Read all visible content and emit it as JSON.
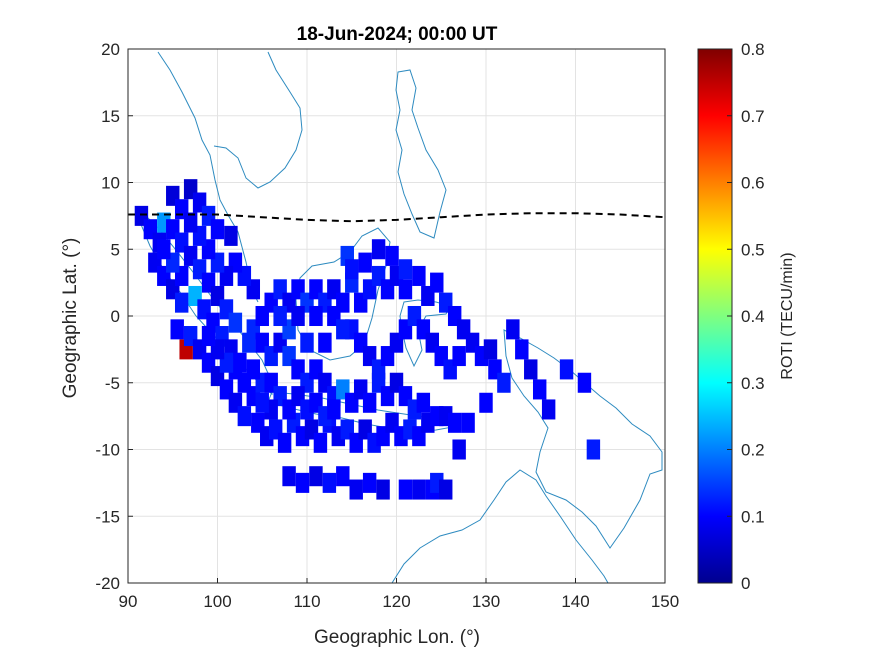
{
  "chart_data": {
    "type": "heatmap",
    "title": "18-Jun-2024; 00:00 UT",
    "xlabel": "Geographic Lon. (°)",
    "ylabel": "Geographic Lat. (°)",
    "xlim": [
      90,
      150
    ],
    "ylim": [
      -20,
      20
    ],
    "xticks": [
      90,
      100,
      110,
      120,
      130,
      140,
      150
    ],
    "yticks": [
      20,
      15,
      10,
      5,
      0,
      -5,
      -10,
      -15,
      -20
    ],
    "grid": true,
    "colorbar": {
      "label": "ROTI (TECU/min)",
      "range": [
        0,
        0.8
      ],
      "ticks": [
        0,
        0.1,
        0.2,
        0.3,
        0.4,
        0.5,
        0.6,
        0.7,
        0.8
      ],
      "colormap": "jet"
    },
    "magnetic_equator": {
      "style": "dashed",
      "color": "#000000",
      "lon": [
        90,
        95,
        100,
        105,
        110,
        115,
        120,
        125,
        130,
        135,
        140,
        145,
        150
      ],
      "lat": [
        7.6,
        7.6,
        7.6,
        7.4,
        7.2,
        7.1,
        7.2,
        7.4,
        7.6,
        7.7,
        7.7,
        7.6,
        7.4
      ]
    },
    "cell_size_deg": 1.5,
    "cells": [
      [
        91.5,
        7.5,
        0.08
      ],
      [
        92.5,
        6.5,
        0.1
      ],
      [
        93.5,
        5.5,
        0.09
      ],
      [
        95,
        9,
        0.07
      ],
      [
        96,
        8,
        0.1
      ],
      [
        97,
        9.5,
        0.06
      ],
      [
        98,
        8.5,
        0.09
      ],
      [
        99,
        7.5,
        0.12
      ],
      [
        100,
        6.5,
        0.1
      ],
      [
        101.5,
        6,
        0.08
      ],
      [
        94,
        7,
        0.22
      ],
      [
        95,
        6.5,
        0.1
      ],
      [
        96,
        5.5,
        0.11
      ],
      [
        97,
        4.5,
        0.09
      ],
      [
        98,
        3.5,
        0.12
      ],
      [
        99,
        2.5,
        0.1
      ],
      [
        100,
        1.5,
        0.08
      ],
      [
        101,
        0.5,
        0.12
      ],
      [
        102,
        -0.5,
        0.14
      ],
      [
        93,
        4,
        0.09
      ],
      [
        94,
        3,
        0.1
      ],
      [
        95,
        2,
        0.08
      ],
      [
        96,
        1,
        0.12
      ],
      [
        97.5,
        1.5,
        0.24
      ],
      [
        98.5,
        0.5,
        0.11
      ],
      [
        99.5,
        -0.5,
        0.1
      ],
      [
        100.5,
        -1.5,
        0.12
      ],
      [
        101.5,
        -2.5,
        0.09
      ],
      [
        102.5,
        -3.5,
        0.1
      ],
      [
        103.5,
        -2,
        0.13
      ],
      [
        96.5,
        -2.5,
        0.75
      ],
      [
        95.5,
        -1,
        0.1
      ],
      [
        97,
        -1.5,
        0.12
      ],
      [
        98,
        -2.5,
        0.09
      ],
      [
        99,
        -3.5,
        0.1
      ],
      [
        100,
        -4.5,
        0.08
      ],
      [
        101,
        -5.5,
        0.1
      ],
      [
        102,
        -6.5,
        0.09
      ],
      [
        103,
        -7.5,
        0.11
      ],
      [
        104,
        -6,
        0.1
      ],
      [
        105,
        -5,
        0.12
      ],
      [
        104.5,
        -8,
        0.1
      ],
      [
        105.5,
        -9,
        0.09
      ],
      [
        106.5,
        -8.5,
        0.11
      ],
      [
        107.5,
        -9.5,
        0.1
      ],
      [
        108.5,
        -8,
        0.12
      ],
      [
        109.5,
        -9,
        0.1
      ],
      [
        110.5,
        -8.5,
        0.08
      ],
      [
        111.5,
        -9.5,
        0.1
      ],
      [
        112.5,
        -8,
        0.11
      ],
      [
        113.5,
        -9,
        0.09
      ],
      [
        114.5,
        -8.5,
        0.12
      ],
      [
        115.5,
        -9.5,
        0.1
      ],
      [
        116.5,
        -8.5,
        0.08
      ],
      [
        117.5,
        -9.5,
        0.11
      ],
      [
        118.5,
        -9,
        0.1
      ],
      [
        119.5,
        -8,
        0.09
      ],
      [
        120.5,
        -9,
        0.1
      ],
      [
        121.5,
        -8.5,
        0.12
      ],
      [
        122.5,
        -9,
        0.1
      ],
      [
        123.5,
        -8,
        0.09
      ],
      [
        124.5,
        -7.5,
        0.1
      ],
      [
        125.5,
        -7.5,
        0.09
      ],
      [
        126.5,
        -8,
        0.1
      ],
      [
        104,
        -1,
        0.13
      ],
      [
        105,
        -2,
        0.1
      ],
      [
        106,
        -3,
        0.12
      ],
      [
        107,
        -2,
        0.09
      ],
      [
        108,
        -3,
        0.14
      ],
      [
        109,
        -4,
        0.1
      ],
      [
        110,
        -5,
        0.12
      ],
      [
        111,
        -4,
        0.1
      ],
      [
        112,
        -5,
        0.09
      ],
      [
        113,
        -6,
        0.11
      ],
      [
        114,
        -5.5,
        0.2
      ],
      [
        115,
        -6.5,
        0.1
      ],
      [
        116,
        -5.5,
        0.09
      ],
      [
        117,
        -6.5,
        0.1
      ],
      [
        118,
        -5,
        0.12
      ],
      [
        119,
        -6,
        0.1
      ],
      [
        120,
        -5,
        0.08
      ],
      [
        121,
        -6,
        0.1
      ],
      [
        122,
        -7,
        0.12
      ],
      [
        123,
        -6.5,
        0.1
      ],
      [
        106,
        1,
        0.1
      ],
      [
        107,
        2,
        0.12
      ],
      [
        108,
        1,
        0.09
      ],
      [
        109,
        2,
        0.1
      ],
      [
        110,
        1,
        0.14
      ],
      [
        111,
        2,
        0.1
      ],
      [
        112,
        1,
        0.12
      ],
      [
        113,
        2,
        0.09
      ],
      [
        114,
        1,
        0.1
      ],
      [
        115,
        2.5,
        0.13
      ],
      [
        116,
        1,
        0.1
      ],
      [
        117,
        2,
        0.11
      ],
      [
        118,
        3,
        0.12
      ],
      [
        119,
        2,
        0.1
      ],
      [
        120,
        3,
        0.09
      ],
      [
        121,
        2,
        0.1
      ],
      [
        114.5,
        4.5,
        0.14
      ],
      [
        115,
        3.5,
        0.11
      ],
      [
        116.5,
        4,
        0.1
      ],
      [
        118,
        5,
        0.09
      ],
      [
        119.5,
        4.5,
        0.1
      ],
      [
        121,
        3.5,
        0.12
      ],
      [
        122.5,
        3,
        0.1
      ],
      [
        123.5,
        1.5,
        0.09
      ],
      [
        124.5,
        2.5,
        0.1
      ],
      [
        125.5,
        1,
        0.12
      ],
      [
        126.5,
        0,
        0.1
      ],
      [
        127.5,
        -1,
        0.09
      ],
      [
        106,
        -5,
        0.1
      ],
      [
        107,
        -6,
        0.12
      ],
      [
        108,
        -7,
        0.1
      ],
      [
        109,
        -6,
        0.09
      ],
      [
        110,
        -7,
        0.11
      ],
      [
        111,
        -6.5,
        0.1
      ],
      [
        112,
        -7.5,
        0.12
      ],
      [
        113,
        -7,
        0.1
      ],
      [
        108,
        -12,
        0.09
      ],
      [
        109.5,
        -12.5,
        0.1
      ],
      [
        111,
        -12,
        0.08
      ],
      [
        112.5,
        -12.5,
        0.11
      ],
      [
        114,
        -12,
        0.1
      ],
      [
        115.5,
        -13,
        0.09
      ],
      [
        117,
        -12.5,
        0.1
      ],
      [
        118.5,
        -13,
        0.08
      ],
      [
        121,
        -13,
        0.1
      ],
      [
        122.5,
        -13,
        0.09
      ],
      [
        124,
        -13,
        0.1
      ],
      [
        124.5,
        -12.5,
        0.12
      ],
      [
        125.5,
        -13,
        0.08
      ],
      [
        127,
        -10,
        0.09
      ],
      [
        128,
        -8,
        0.1
      ],
      [
        128.5,
        -2,
        0.09
      ],
      [
        129.5,
        -3,
        0.1
      ],
      [
        130.5,
        -2.5,
        0.08
      ],
      [
        131,
        -4,
        0.1
      ],
      [
        132,
        -5,
        0.12
      ],
      [
        133,
        -1,
        0.09
      ],
      [
        134,
        -2.5,
        0.1
      ],
      [
        135,
        -4,
        0.08
      ],
      [
        136,
        -5.5,
        0.1
      ],
      [
        137,
        -7,
        0.09
      ],
      [
        139,
        -4,
        0.11
      ],
      [
        141,
        -5,
        0.1
      ],
      [
        142,
        -10,
        0.12
      ],
      [
        130,
        -6.5,
        0.1
      ],
      [
        108,
        -1,
        0.15
      ],
      [
        110,
        -2,
        0.12
      ],
      [
        112,
        -2,
        0.1
      ],
      [
        104,
        2,
        0.09
      ],
      [
        103,
        3,
        0.11
      ],
      [
        102,
        4,
        0.1
      ],
      [
        101,
        3,
        0.09
      ],
      [
        100,
        4,
        0.12
      ],
      [
        99,
        5,
        0.1
      ],
      [
        98,
        6,
        0.11
      ],
      [
        97,
        7,
        0.09
      ],
      [
        96,
        3,
        0.1
      ],
      [
        95,
        4,
        0.13
      ],
      [
        94,
        5,
        0.1
      ],
      [
        115,
        -1,
        0.11
      ],
      [
        116,
        -2,
        0.1
      ],
      [
        117,
        -3,
        0.09
      ],
      [
        118,
        -4,
        0.12
      ],
      [
        119,
        -3,
        0.1
      ],
      [
        120,
        -2,
        0.09
      ],
      [
        121,
        -1,
        0.1
      ],
      [
        122,
        0,
        0.12
      ],
      [
        123,
        -1,
        0.1
      ],
      [
        124,
        -2,
        0.09
      ],
      [
        125,
        -3,
        0.1
      ],
      [
        126,
        -4,
        0.11
      ],
      [
        127,
        -3,
        0.1
      ],
      [
        113,
        0,
        0.1
      ],
      [
        114,
        -1,
        0.12
      ],
      [
        111,
        0,
        0.1
      ],
      [
        109,
        0,
        0.09
      ],
      [
        107,
        0,
        0.12
      ],
      [
        105,
        0,
        0.1
      ],
      [
        106,
        -7,
        0.09
      ],
      [
        105,
        -6.5,
        0.11
      ],
      [
        104,
        -4,
        0.1
      ],
      [
        103,
        -5,
        0.1
      ],
      [
        102,
        -4,
        0.1
      ],
      [
        101,
        -3.5,
        0.12
      ],
      [
        100,
        -2.5,
        0.09
      ],
      [
        99,
        -1.5,
        0.1
      ]
    ]
  }
}
